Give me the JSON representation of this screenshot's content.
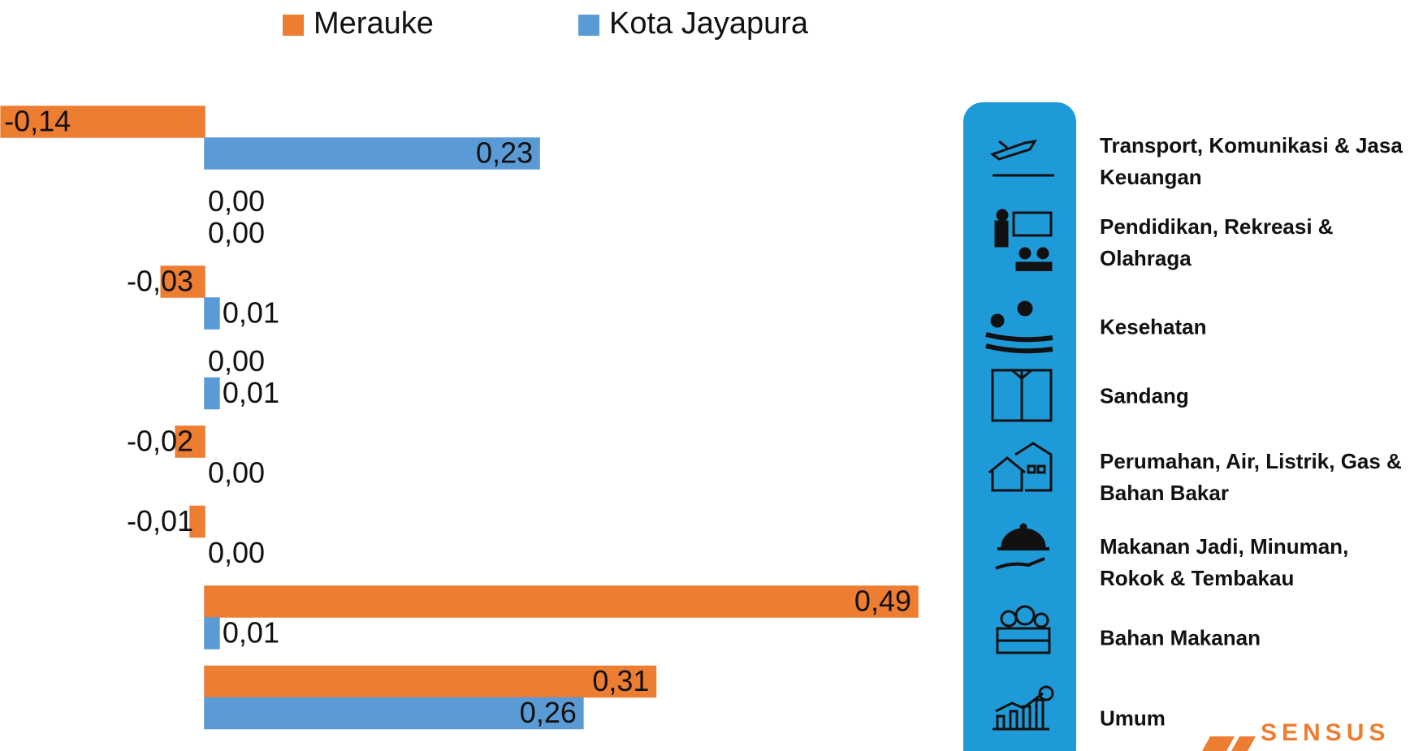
{
  "chart_data": {
    "type": "bar",
    "orientation": "horizontal",
    "categories": [
      "Transport, Komunikasi & Jasa Keuangan",
      "Pendidikan, Rekreasi & Olahraga",
      "Kesehatan",
      "Sandang",
      "Perumahan, Air, Listrik, Gas & Bahan Bakar",
      "Makanan Jadi, Minuman, Rokok & Tembakau",
      "Bahan Makanan",
      "Umum"
    ],
    "series": [
      {
        "name": "Merauke",
        "color": "#ed7d31",
        "values": [
          -0.14,
          0,
          -0.03,
          0,
          -0.02,
          -0.01,
          0.49,
          0.31
        ],
        "value_labels": [
          "-0,14",
          "0,00",
          "-0,03",
          "0,00",
          "-0,02",
          "-0,01",
          "0,49",
          "0,31"
        ]
      },
      {
        "name": "Kota Jayapura",
        "color": "#5b9bd5",
        "values": [
          0.23,
          0,
          0.01,
          0.01,
          0,
          0,
          0.01,
          0.26
        ],
        "value_labels": [
          "0,23",
          "0,00",
          "0,01",
          "0,01",
          "0,00",
          "0,00",
          "0,01",
          "0,26"
        ]
      }
    ],
    "legend": "top",
    "logo": "SENSUS"
  }
}
